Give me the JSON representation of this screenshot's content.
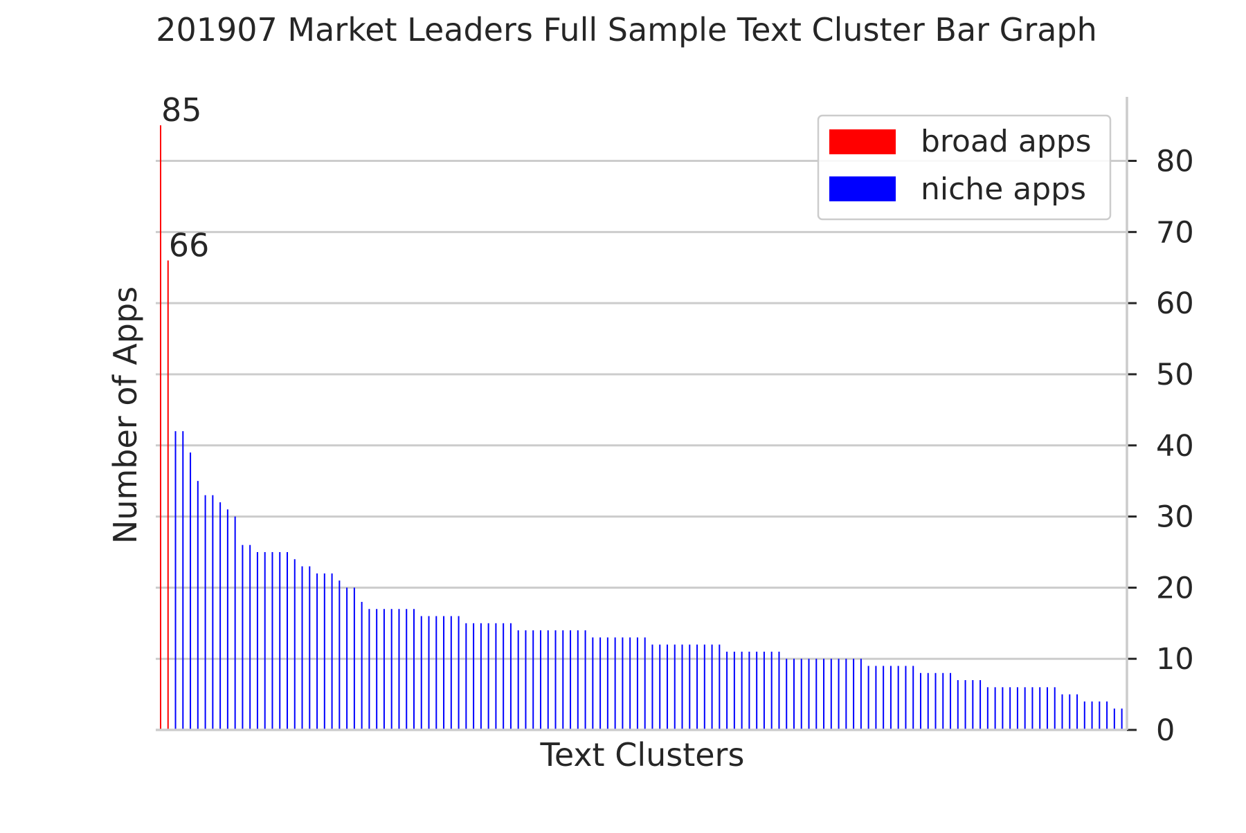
{
  "chart_data": {
    "type": "bar",
    "title": "201907 Market Leaders Full Sample Text Cluster Bar Graph",
    "xlabel": "Text Clusters",
    "ylabel": "Number of Apps",
    "ylim": [
      0,
      89
    ],
    "yticks": [
      0,
      10,
      20,
      30,
      40,
      50,
      60,
      70,
      80
    ],
    "y_axis_side": "right",
    "grid": "horizontal",
    "legend_placement": "top-right",
    "colors": {
      "broad apps": "#ff0000",
      "niche apps": "#0000ff"
    },
    "series": [
      {
        "name": "broad apps",
        "values": [
          85,
          66
        ]
      },
      {
        "name": "niche apps",
        "values": [
          42,
          42,
          39,
          35,
          33,
          33,
          32,
          31,
          30,
          26,
          26,
          25,
          25,
          25,
          25,
          25,
          24,
          23,
          23,
          22,
          22,
          22,
          21,
          20,
          20,
          18,
          17,
          17,
          17,
          17,
          17,
          17,
          17,
          16,
          16,
          16,
          16,
          16,
          16,
          15,
          15,
          15,
          15,
          15,
          15,
          15,
          14,
          14,
          14,
          14,
          14,
          14,
          14,
          14,
          14,
          14,
          13,
          13,
          13,
          13,
          13,
          13,
          13,
          13,
          12,
          12,
          12,
          12,
          12,
          12,
          12,
          12,
          12,
          12,
          11,
          11,
          11,
          11,
          11,
          11,
          11,
          11,
          10,
          10,
          10,
          10,
          10,
          10,
          10,
          10,
          10,
          10,
          10,
          9,
          9,
          9,
          9,
          9,
          9,
          9,
          8,
          8,
          8,
          8,
          8,
          7,
          7,
          7,
          7,
          6,
          6,
          6,
          6,
          6,
          6,
          6,
          6,
          6,
          6,
          5,
          5,
          5,
          4,
          4,
          4,
          4,
          3,
          3
        ]
      }
    ],
    "data_labels": [
      "85",
      "66"
    ]
  }
}
